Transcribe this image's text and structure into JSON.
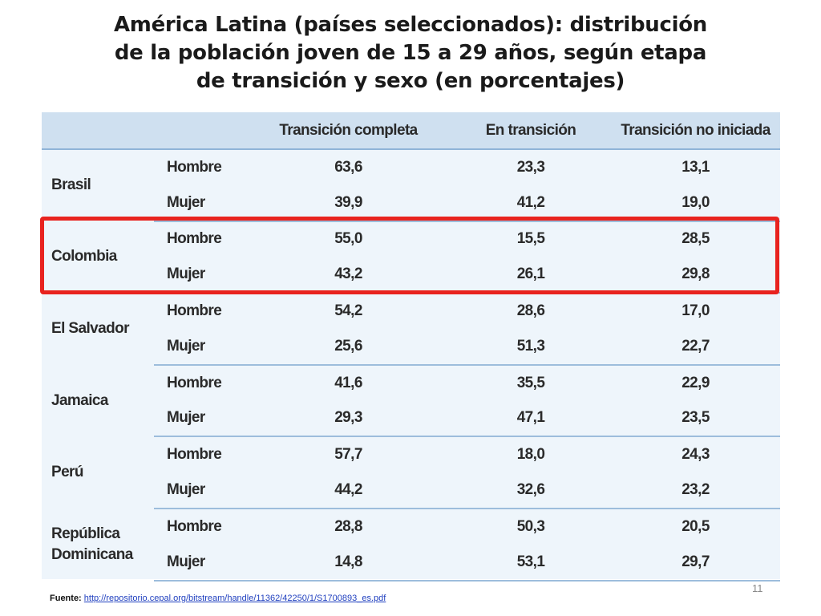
{
  "title": {
    "line1": "América Latina (países seleccionados): distribución",
    "line2": "de la población joven de 15 a 29 años, según etapa",
    "line3": "de transición y sexo (en porcentajes)"
  },
  "table": {
    "headers": [
      "",
      "",
      "Transición completa",
      "En transición",
      "Transición no iniciada"
    ],
    "groups": [
      {
        "country": [
          "Brasil"
        ],
        "rows": [
          {
            "sex": "Hombre",
            "values": [
              "63,6",
              "23,3",
              "13,1"
            ]
          },
          {
            "sex": "Mujer",
            "values": [
              "39,9",
              "41,2",
              "19,0"
            ]
          }
        ]
      },
      {
        "country": [
          "Colombia"
        ],
        "rows": [
          {
            "sex": "Hombre",
            "values": [
              "55,0",
              "15,5",
              "28,5"
            ]
          },
          {
            "sex": "Mujer",
            "values": [
              "43,2",
              "26,1",
              "29,8"
            ]
          }
        ]
      },
      {
        "country": [
          "El Salvador"
        ],
        "rows": [
          {
            "sex": "Hombre",
            "values": [
              "54,2",
              "28,6",
              "17,0"
            ]
          },
          {
            "sex": "Mujer",
            "values": [
              "25,6",
              "51,3",
              "22,7"
            ]
          }
        ]
      },
      {
        "country": [
          "Jamaica"
        ],
        "rows": [
          {
            "sex": "Hombre",
            "values": [
              "41,6",
              "35,5",
              "22,9"
            ]
          },
          {
            "sex": "Mujer",
            "values": [
              "29,3",
              "47,1",
              "23,5"
            ]
          }
        ]
      },
      {
        "country": [
          "Perú"
        ],
        "rows": [
          {
            "sex": "Hombre",
            "values": [
              "57,7",
              "18,0",
              "24,3"
            ]
          },
          {
            "sex": "Mujer",
            "values": [
              "44,2",
              "32,6",
              "23,2"
            ]
          }
        ]
      },
      {
        "country": [
          "República",
          "Dominicana"
        ],
        "rows": [
          {
            "sex": "Hombre",
            "values": [
              "28,8",
              "50,3",
              "20,5"
            ]
          },
          {
            "sex": "Mujer",
            "values": [
              "14,8",
              "53,1",
              "29,7"
            ]
          }
        ]
      }
    ],
    "highlighted_group": "Colombia"
  },
  "page_number": "11",
  "source": {
    "label": "Fuente:",
    "url": "http://repositorio.cepal.org/bitstream/handle/11362/42250/1/S1700893_es.pdf"
  },
  "colors": {
    "header_bg": "#cfe0f0",
    "table_bg": "#eef5fb",
    "highlight": "#e8231f"
  }
}
